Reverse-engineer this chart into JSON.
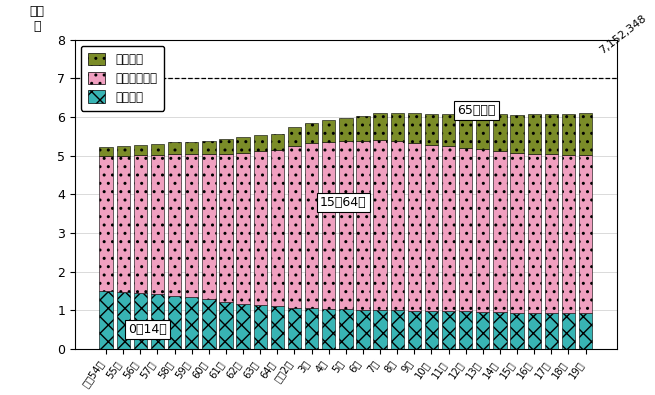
{
  "labels": [
    "昭和54年",
    "55年",
    "56年",
    "57年",
    "58年",
    "59年",
    "60年",
    "61年",
    "62年",
    "63年",
    "64年",
    "平成2年",
    "3年",
    "4年",
    "5年",
    "6年",
    "7年",
    "8年",
    "9年",
    "10年",
    "11年",
    "12年",
    "13年",
    "14年",
    "15年",
    "16年",
    "17年",
    "18年",
    "19年"
  ],
  "young": [
    1.51,
    1.47,
    1.44,
    1.41,
    1.38,
    1.33,
    1.28,
    1.22,
    1.17,
    1.13,
    1.1,
    1.07,
    1.05,
    1.03,
    1.02,
    1.01,
    1.01,
    1.0,
    0.99,
    0.98,
    0.98,
    0.97,
    0.96,
    0.95,
    0.94,
    0.93,
    0.93,
    0.92,
    0.92
  ],
  "working": [
    3.48,
    3.53,
    3.57,
    3.61,
    3.65,
    3.7,
    3.76,
    3.83,
    3.91,
    4.0,
    4.05,
    4.19,
    4.27,
    4.32,
    4.36,
    4.38,
    4.4,
    4.37,
    4.34,
    4.3,
    4.26,
    4.22,
    4.2,
    4.18,
    4.14,
    4.12,
    4.11,
    4.1,
    4.09
  ],
  "elderly": [
    0.23,
    0.25,
    0.27,
    0.29,
    0.31,
    0.33,
    0.35,
    0.37,
    0.39,
    0.4,
    0.42,
    0.48,
    0.52,
    0.56,
    0.6,
    0.64,
    0.68,
    0.72,
    0.76,
    0.8,
    0.83,
    0.86,
    0.9,
    0.94,
    0.98,
    1.02,
    1.04,
    1.06,
    1.1
  ],
  "young_color": "#38b4b4",
  "working_color": "#f0a0c0",
  "elderly_color": "#7b8c28",
  "bg_color": "#ffffff",
  "ylim": [
    0,
    8
  ],
  "yticks": [
    0,
    1,
    2,
    3,
    4,
    5,
    6,
    7,
    8
  ],
  "dashed_line_y": 7.0,
  "annotation_value": "7,152,348",
  "label_young": "0〜14歳",
  "label_working": "15〜64歳",
  "label_elderly": "65歳以上",
  "legend_elderly": "老年人口",
  "legend_working": "生産年齢人口",
  "legend_young": "年少人口",
  "ylabel": "百万\n人"
}
